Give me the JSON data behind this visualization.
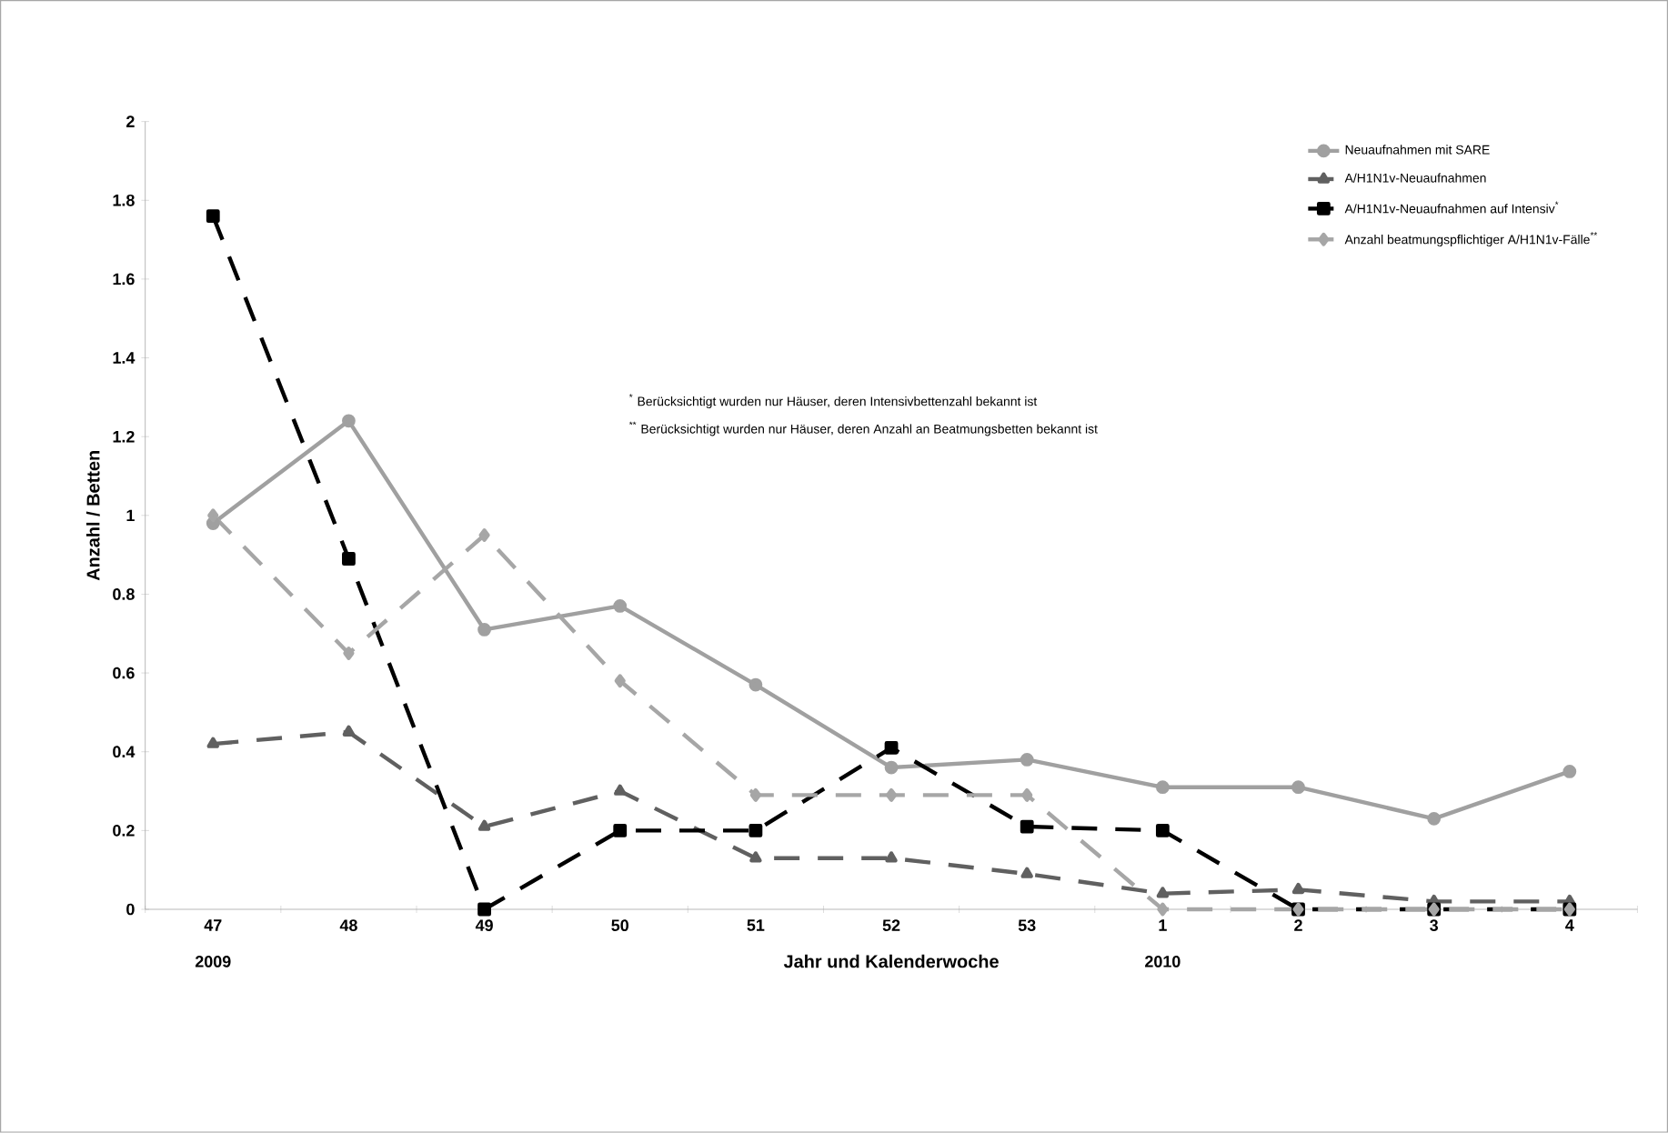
{
  "chart_data": {
    "type": "line",
    "xlabel": "Jahr und Kalenderwoche",
    "ylabel": "Anzahl / Betten",
    "categories": [
      "47",
      "48",
      "49",
      "50",
      "51",
      "52",
      "53",
      "1",
      "2",
      "3",
      "4"
    ],
    "series": [
      {
        "name": "Neuaufnahmen mit SARE",
        "color": "#a0a0a0",
        "marker": "circle",
        "line_style": "solid",
        "values": [
          0.98,
          1.24,
          0.71,
          0.77,
          0.57,
          0.36,
          0.38,
          0.31,
          0.31,
          0.23,
          0.35
        ]
      },
      {
        "name": "A/H1N1v-Neuaufnahmen",
        "color": "#606060",
        "marker": "triangle",
        "line_style": "dashed",
        "values": [
          0.42,
          0.45,
          0.21,
          0.3,
          0.13,
          0.13,
          0.09,
          0.04,
          0.05,
          0.02,
          0.02
        ]
      },
      {
        "name": "A/H1N1v-Neuaufnahmen auf Intensiv$^{*}$",
        "color": "#000000",
        "marker": "square",
        "line_style": "dashed",
        "values": [
          1.76,
          0.89,
          0.0,
          0.2,
          0.2,
          0.41,
          0.21,
          0.2,
          0.0,
          0.0,
          0.0
        ]
      },
      {
        "name": "Anzahl beatmungspflichtiger A/H1N1v-Fälle$^{**}$",
        "color": "#a6a6a6",
        "marker": "diamond",
        "line_style": "dashed",
        "values": [
          1.0,
          0.65,
          0.95,
          0.58,
          0.29,
          0.29,
          0.29,
          0.0,
          0.0,
          0.0,
          0.0
        ]
      }
    ],
    "ylim": [
      0,
      2
    ],
    "yticks": [
      0,
      0.2,
      0.4,
      0.6,
      0.8,
      1,
      1.2,
      1.4,
      1.6,
      1.8,
      2
    ],
    "legend": "top right",
    "grid": false,
    "annotations": [
      "2009",
      "2010",
      "$^{*}$ Berücksichtigt wurden nur Häuser, deren Intensivbettenzahl bekannt ist",
      "$^{**}$ Berücksichtigt wurden nur Häuser, deren Anzahl an Beatmungsbetten bekannt ist"
    ]
  }
}
